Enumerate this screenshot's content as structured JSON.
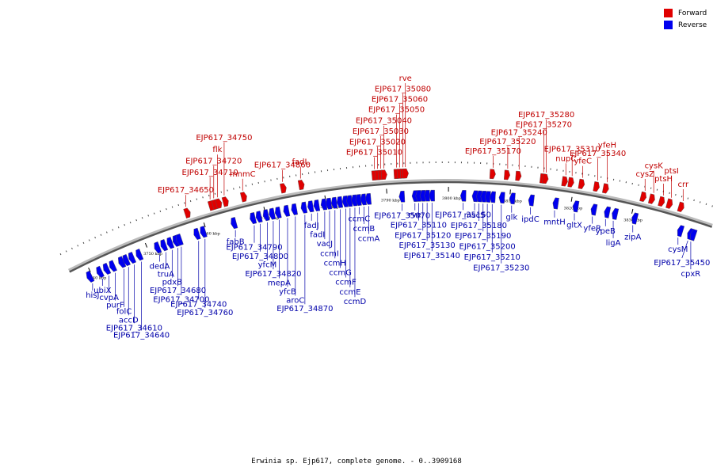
{
  "legend": {
    "forward_label": "Forward",
    "reverse_label": "Reverse",
    "forward_color": "#e00000",
    "reverse_color": "#0000ee"
  },
  "caption": "Erwinia sp. Ejp617, complete genome. - 0..3909168",
  "colors": {
    "forward_label": "#c00000",
    "reverse_label": "#0000aa",
    "backbone": "#555555"
  },
  "scale_ticks": [
    {
      "text": "3740 kbp",
      "pos": 3740
    },
    {
      "text": "3750 kbp",
      "pos": 3750
    },
    {
      "text": "3760 kbp",
      "pos": 3760
    },
    {
      "text": "3770 kbp",
      "pos": 3770
    },
    {
      "text": "3780 kbp",
      "pos": 3780
    },
    {
      "text": "3790 kbp",
      "pos": 3790
    },
    {
      "text": "3800 kbp",
      "pos": 3800
    },
    {
      "text": "3810 kbp",
      "pos": 3810
    },
    {
      "text": "3820 kbp",
      "pos": 3820
    },
    {
      "text": "3830 kbp",
      "pos": 3830
    }
  ],
  "forward_genes": [
    {
      "label": "EJP617_34650",
      "pos": 3758.0
    },
    {
      "label": "EJP617_34710",
      "pos": 3762.0
    },
    {
      "label": "EJP617_34720",
      "pos": 3762.6
    },
    {
      "label": "flk",
      "pos": 3763.2
    },
    {
      "label": "EJP617_34750",
      "pos": 3764.3
    },
    {
      "label": "mnmC",
      "pos": 3767.3
    },
    {
      "label": "EJP617_34860",
      "pos": 3773.7
    },
    {
      "label": "fadL",
      "pos": 3776.6
    },
    {
      "label": "EJP617_35010",
      "pos": 3788.3
    },
    {
      "label": "EJP617_35020",
      "pos": 3788.8
    },
    {
      "label": "EJP617_35030",
      "pos": 3789.3
    },
    {
      "label": "EJP617_35040",
      "pos": 3789.8
    },
    {
      "label": "EJP617_35050",
      "pos": 3791.8
    },
    {
      "label": "EJP617_35060",
      "pos": 3792.3
    },
    {
      "label": "EJP617_35080",
      "pos": 3792.8
    },
    {
      "label": "rve",
      "pos": 3793.2
    },
    {
      "label": "EJP617_35170",
      "pos": 3807.0
    },
    {
      "label": "EJP617_35220",
      "pos": 3809.3
    },
    {
      "label": "EJP617_35240",
      "pos": 3811.1
    },
    {
      "label": "EJP617_35270",
      "pos": 3815.0
    },
    {
      "label": "EJP617_35280",
      "pos": 3815.4
    },
    {
      "label": "nupC",
      "pos": 3818.5
    },
    {
      "label": "EJP617_35310",
      "pos": 3819.5
    },
    {
      "label": "yfeC",
      "pos": 3821.2
    },
    {
      "label": "EJP617_35340",
      "pos": 3823.6
    },
    {
      "label": "yfeH",
      "pos": 3825.1
    },
    {
      "label": "cysZ",
      "pos": 3831.2
    },
    {
      "label": "cysK",
      "pos": 3832.6
    },
    {
      "label": "ptsH",
      "pos": 3834.2
    },
    {
      "label": "ptsI",
      "pos": 3835.5
    },
    {
      "label": "crr",
      "pos": 3837.4
    }
  ],
  "reverse_genes": [
    {
      "label": "hisJ",
      "pos": 3739.5
    },
    {
      "label": "ubiX",
      "pos": 3741.3
    },
    {
      "label": "cvpA",
      "pos": 3742.5
    },
    {
      "label": "purF",
      "pos": 3743.6
    },
    {
      "label": "folC",
      "pos": 3745.2
    },
    {
      "label": "accD",
      "pos": 3746.0
    },
    {
      "label": "EJP617_34610",
      "pos": 3747.0
    },
    {
      "label": "EJP617_34640",
      "pos": 3748.3
    },
    {
      "label": "dedA",
      "pos": 3751.5
    },
    {
      "label": "truA",
      "pos": 3752.6
    },
    {
      "label": "pdxB",
      "pos": 3753.7
    },
    {
      "label": "EJP617_34680",
      "pos": 3754.7
    },
    {
      "label": "EJP617_34700",
      "pos": 3755.3
    },
    {
      "label": "EJP617_34740",
      "pos": 3758.3
    },
    {
      "label": "EJP617_34760",
      "pos": 3759.4
    },
    {
      "label": "fabB",
      "pos": 3764.6
    },
    {
      "label": "EJP617_34790",
      "pos": 3767.8
    },
    {
      "label": "EJP617_34800",
      "pos": 3768.8
    },
    {
      "label": "yfcM",
      "pos": 3770.0
    },
    {
      "label": "EJP617_34820",
      "pos": 3771.0
    },
    {
      "label": "mepA",
      "pos": 3772.0
    },
    {
      "label": "yfcB",
      "pos": 3773.4
    },
    {
      "label": "aroC",
      "pos": 3774.7
    },
    {
      "label": "EJP617_34870",
      "pos": 3776.3
    },
    {
      "label": "fadJ",
      "pos": 3777.4
    },
    {
      "label": "fadI",
      "pos": 3778.4
    },
    {
      "label": "vacJ",
      "pos": 3779.6
    },
    {
      "label": "ccmI",
      "pos": 3780.4
    },
    {
      "label": "ccmH",
      "pos": 3781.3
    },
    {
      "label": "ccmG",
      "pos": 3782.2
    },
    {
      "label": "ccmF",
      "pos": 3783.1
    },
    {
      "label": "ccmE",
      "pos": 3783.8
    },
    {
      "label": "ccmD",
      "pos": 3784.6
    },
    {
      "label": "ccmC",
      "pos": 3785.3
    },
    {
      "label": "ccmB",
      "pos": 3786.1
    },
    {
      "label": "ccmA",
      "pos": 3786.9
    },
    {
      "label": "EJP617_35070",
      "pos": 3792.4
    },
    {
      "label": "rve",
      "pos": 3794.5
    },
    {
      "label": "EJP617_35110",
      "pos": 3795.1
    },
    {
      "label": "EJP617_35120",
      "pos": 3795.8
    },
    {
      "label": "EJP617_35130",
      "pos": 3796.5
    },
    {
      "label": "EJP617_35140",
      "pos": 3797.3
    },
    {
      "label": "EJP617_35150",
      "pos": 3802.4
    },
    {
      "label": "mscS",
      "pos": 3804.3
    },
    {
      "label": "EJP617_35180",
      "pos": 3805.0
    },
    {
      "label": "EJP617_35190",
      "pos": 3805.7
    },
    {
      "label": "EJP617_35200",
      "pos": 3806.4
    },
    {
      "label": "EJP617_35210",
      "pos": 3807.2
    },
    {
      "label": "EJP617_35230",
      "pos": 3808.7
    },
    {
      "label": "glk",
      "pos": 3810.4
    },
    {
      "label": "ipdC",
      "pos": 3813.5
    },
    {
      "label": "mntH",
      "pos": 3817.5
    },
    {
      "label": "gltX",
      "pos": 3820.8
    },
    {
      "label": "yfeR",
      "pos": 3823.8
    },
    {
      "label": "ypeB",
      "pos": 3826.0
    },
    {
      "label": "ligA",
      "pos": 3827.3
    },
    {
      "label": "zipA",
      "pos": 3830.6
    },
    {
      "label": "cpxR",
      "pos": 3840.5
    },
    {
      "label": "cysM",
      "pos": 3838.3
    },
    {
      "label": "EJP617_35450",
      "pos": 3840.0
    }
  ]
}
